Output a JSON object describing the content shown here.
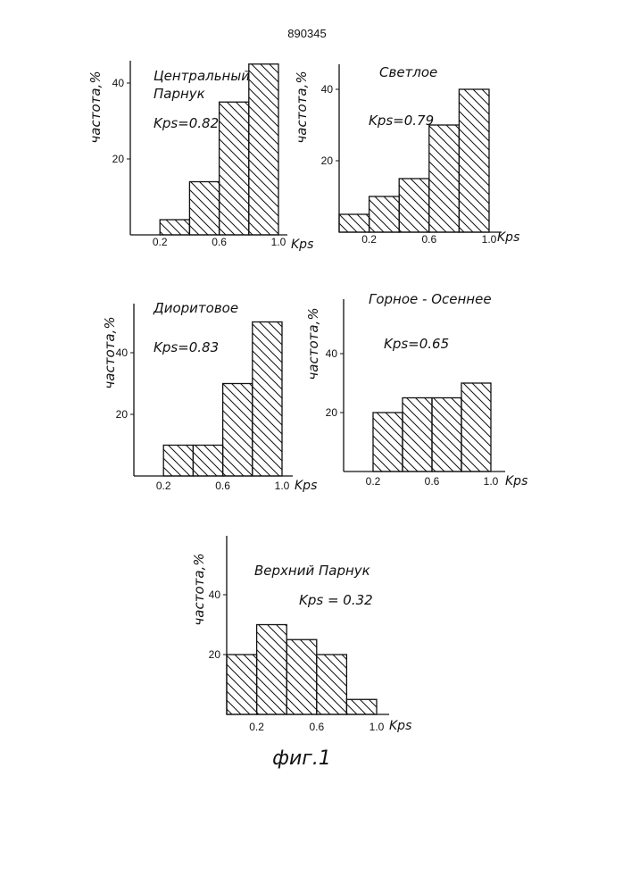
{
  "page": {
    "number": "890345",
    "caption": "фиг.1"
  },
  "chart_data": [
    {
      "type": "bar",
      "title": "Центральный Парнук",
      "title_lines": [
        "Центральный",
        "Парнук"
      ],
      "kps": "Kps=0.82",
      "ylabel": "частота,%",
      "xlabel": "Kps",
      "x_ticks": [
        "0.2",
        "0.6",
        "1.0"
      ],
      "y_ticks": [
        "20",
        "40"
      ],
      "ylim": [
        0,
        50
      ],
      "bins": [
        [
          0.0,
          0.2
        ],
        [
          0.2,
          0.4
        ],
        [
          0.4,
          0.6
        ],
        [
          0.6,
          0.8
        ],
        [
          0.8,
          1.0
        ]
      ],
      "values": [
        0,
        4,
        14,
        35,
        45
      ]
    },
    {
      "type": "bar",
      "title": "Светлое",
      "title_lines": [
        "Светлое"
      ],
      "kps": "Kps=0.79",
      "ylabel": "частота,%",
      "xlabel": "Kps",
      "x_ticks": [
        "0.2",
        "0.6",
        "1.0"
      ],
      "y_ticks": [
        "20",
        "40"
      ],
      "ylim": [
        0,
        50
      ],
      "bins": [
        [
          0.0,
          0.2
        ],
        [
          0.2,
          0.4
        ],
        [
          0.4,
          0.6
        ],
        [
          0.6,
          0.8
        ],
        [
          0.8,
          1.0
        ]
      ],
      "values": [
        5,
        10,
        15,
        30,
        40
      ]
    },
    {
      "type": "bar",
      "title": "Диоритовое",
      "title_lines": [
        "Диоритовое"
      ],
      "kps": "Kps=0.83",
      "ylabel": "частота,%",
      "xlabel": "Kps",
      "x_ticks": [
        "0.2",
        "0.6",
        "1.0"
      ],
      "y_ticks": [
        "20",
        "40"
      ],
      "ylim": [
        0,
        50
      ],
      "bins": [
        [
          0.0,
          0.2
        ],
        [
          0.2,
          0.4
        ],
        [
          0.4,
          0.6
        ],
        [
          0.6,
          0.8
        ],
        [
          0.8,
          1.0
        ]
      ],
      "values": [
        0,
        10,
        10,
        30,
        50
      ]
    },
    {
      "type": "bar",
      "title": "Горное - Осеннее",
      "title_lines": [
        "Горное - Осеннее"
      ],
      "kps": "Kps=0.65",
      "ylabel": "частота,%",
      "xlabel": "Kps",
      "x_ticks": [
        "0.2",
        "0.6",
        "1.0"
      ],
      "y_ticks": [
        "20",
        "40"
      ],
      "ylim": [
        0,
        50
      ],
      "bins": [
        [
          0.0,
          0.2
        ],
        [
          0.2,
          0.4
        ],
        [
          0.4,
          0.6
        ],
        [
          0.6,
          0.8
        ],
        [
          0.8,
          1.0
        ]
      ],
      "values": [
        0,
        20,
        25,
        25,
        30
      ]
    },
    {
      "type": "bar",
      "title": "Верхний Парнук",
      "title_lines": [
        "Верхний Парнук"
      ],
      "kps": "Kps = 0.32",
      "ylabel": "частота,%",
      "xlabel": "Kps",
      "x_ticks": [
        "0.2",
        "0.6",
        "1.0"
      ],
      "y_ticks": [
        "20",
        "40"
      ],
      "ylim": [
        0,
        50
      ],
      "bins": [
        [
          0.0,
          0.2
        ],
        [
          0.2,
          0.4
        ],
        [
          0.4,
          0.6
        ],
        [
          0.6,
          0.8
        ],
        [
          0.8,
          1.0
        ]
      ],
      "values": [
        20,
        30,
        25,
        20,
        5
      ]
    }
  ]
}
